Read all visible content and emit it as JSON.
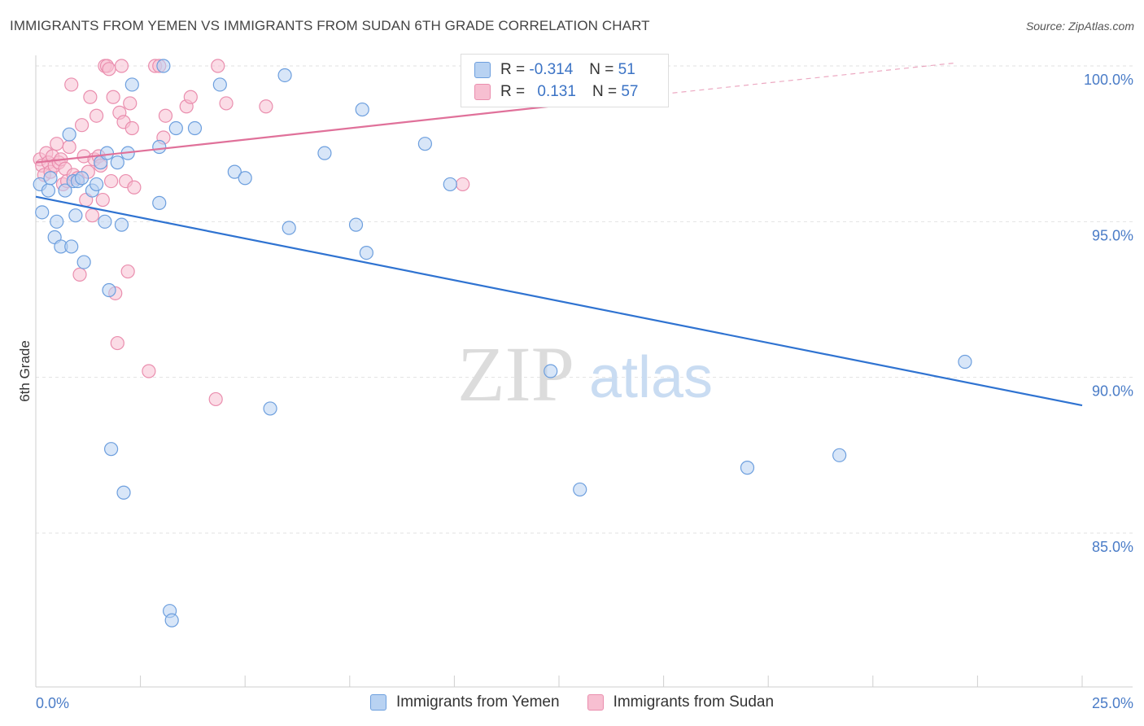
{
  "title": "IMMIGRANTS FROM YEMEN VS IMMIGRANTS FROM SUDAN 6TH GRADE CORRELATION CHART",
  "source": "Source: ZipAtlas.com",
  "watermark": {
    "zip": "ZIP",
    "atlas": "atlas"
  },
  "colors": {
    "yemen_fill": "#b8d2f2",
    "yemen_stroke": "#6d9fde",
    "yemen_line": "#2f73d1",
    "sudan_fill": "#f7bfd1",
    "sudan_stroke": "#ea8eae",
    "sudan_line": "#e0719a",
    "axis_label": "#4a7cc7"
  },
  "legend_top": {
    "rows": [
      {
        "r_label": "R =",
        "r_value": "-0.314",
        "n_label": "N =",
        "n_value": "51"
      },
      {
        "r_label": "R =",
        "r_value": "0.131",
        "n_label": "N =",
        "n_value": "57"
      }
    ]
  },
  "chart_data": {
    "type": "scatter",
    "title": "IMMIGRANTS FROM YEMEN VS IMMIGRANTS FROM SUDAN 6TH GRADE CORRELATION CHART",
    "xlabel": "",
    "ylabel": "6th Grade",
    "xlim": [
      0,
      25
    ],
    "ylim": [
      80.5,
      100.8
    ],
    "x_ticks": [
      "0.0%",
      "25.0%"
    ],
    "y_ticks": [
      {
        "value": 100,
        "label": "100.0%"
      },
      {
        "value": 95,
        "label": "95.0%"
      },
      {
        "value": 90,
        "label": "90.0%"
      },
      {
        "value": 85,
        "label": "85.0%"
      }
    ],
    "series": [
      {
        "name": "Immigrants from Yemen",
        "points": [
          [
            0.1,
            96.2
          ],
          [
            0.15,
            95.3
          ],
          [
            0.3,
            96.0
          ],
          [
            0.35,
            96.4
          ],
          [
            0.45,
            94.5
          ],
          [
            0.5,
            95.0
          ],
          [
            0.6,
            94.2
          ],
          [
            0.7,
            96.0
          ],
          [
            0.8,
            97.8
          ],
          [
            0.85,
            94.2
          ],
          [
            0.9,
            96.3
          ],
          [
            0.95,
            95.2
          ],
          [
            1.0,
            96.3
          ],
          [
            1.1,
            96.4
          ],
          [
            1.15,
            93.7
          ],
          [
            1.35,
            96.0
          ],
          [
            1.45,
            96.2
          ],
          [
            1.55,
            96.9
          ],
          [
            1.65,
            95.0
          ],
          [
            1.7,
            97.2
          ],
          [
            1.75,
            92.8
          ],
          [
            1.8,
            87.7
          ],
          [
            1.95,
            96.9
          ],
          [
            2.05,
            94.9
          ],
          [
            2.1,
            86.3
          ],
          [
            2.2,
            97.2
          ],
          [
            2.3,
            99.4
          ],
          [
            2.95,
            97.4
          ],
          [
            2.95,
            95.6
          ],
          [
            3.05,
            100.0
          ],
          [
            3.2,
            82.5
          ],
          [
            3.25,
            82.2
          ],
          [
            3.35,
            98.0
          ],
          [
            3.8,
            98.0
          ],
          [
            4.4,
            99.4
          ],
          [
            4.75,
            96.6
          ],
          [
            5.0,
            96.4
          ],
          [
            5.6,
            89.0
          ],
          [
            5.95,
            99.7
          ],
          [
            6.05,
            94.8
          ],
          [
            6.9,
            97.2
          ],
          [
            7.65,
            94.9
          ],
          [
            7.8,
            98.6
          ],
          [
            7.9,
            94.0
          ],
          [
            9.3,
            97.5
          ],
          [
            9.9,
            96.2
          ],
          [
            12.3,
            90.2
          ],
          [
            13.0,
            86.4
          ],
          [
            17.0,
            87.1
          ],
          [
            19.2,
            87.5
          ],
          [
            22.2,
            90.5
          ]
        ]
      },
      {
        "name": "Immigrants from Sudan",
        "points": [
          [
            0.1,
            97.0
          ],
          [
            0.15,
            96.8
          ],
          [
            0.2,
            96.5
          ],
          [
            0.25,
            97.2
          ],
          [
            0.3,
            96.9
          ],
          [
            0.35,
            96.6
          ],
          [
            0.4,
            97.1
          ],
          [
            0.45,
            96.8
          ],
          [
            0.5,
            97.5
          ],
          [
            0.55,
            96.9
          ],
          [
            0.6,
            97.0
          ],
          [
            0.65,
            96.2
          ],
          [
            0.7,
            96.7
          ],
          [
            0.75,
            96.3
          ],
          [
            0.8,
            97.4
          ],
          [
            0.85,
            99.4
          ],
          [
            0.9,
            96.5
          ],
          [
            1.0,
            96.4
          ],
          [
            1.05,
            93.3
          ],
          [
            1.1,
            98.1
          ],
          [
            1.15,
            97.1
          ],
          [
            1.2,
            95.7
          ],
          [
            1.25,
            96.6
          ],
          [
            1.3,
            99.0
          ],
          [
            1.35,
            95.2
          ],
          [
            1.4,
            97.0
          ],
          [
            1.45,
            98.4
          ],
          [
            1.5,
            97.1
          ],
          [
            1.55,
            96.8
          ],
          [
            1.6,
            95.7
          ],
          [
            1.65,
            100.0
          ],
          [
            1.7,
            100.0
          ],
          [
            1.75,
            99.9
          ],
          [
            1.8,
            96.3
          ],
          [
            1.85,
            99.0
          ],
          [
            1.9,
            92.7
          ],
          [
            1.95,
            91.1
          ],
          [
            2.0,
            98.5
          ],
          [
            2.05,
            100.0
          ],
          [
            2.1,
            98.2
          ],
          [
            2.15,
            96.3
          ],
          [
            2.2,
            93.4
          ],
          [
            2.25,
            98.8
          ],
          [
            2.3,
            98.0
          ],
          [
            2.35,
            96.1
          ],
          [
            2.7,
            90.2
          ],
          [
            2.85,
            100.0
          ],
          [
            2.95,
            100.0
          ],
          [
            3.05,
            97.7
          ],
          [
            3.1,
            98.4
          ],
          [
            3.6,
            98.7
          ],
          [
            3.7,
            99.0
          ],
          [
            4.3,
            89.3
          ],
          [
            4.35,
            100.0
          ],
          [
            4.55,
            98.8
          ],
          [
            5.5,
            98.7
          ],
          [
            10.2,
            96.2
          ]
        ]
      }
    ],
    "trend_lines": [
      {
        "series": "Immigrants from Yemen",
        "start": [
          0,
          95.8
        ],
        "end": [
          25,
          89.1
        ]
      },
      {
        "series": "Immigrants from Sudan",
        "start": [
          0,
          96.9
        ],
        "end": [
          15,
          99.1
        ],
        "dashed_to": [
          22,
          100.1
        ]
      }
    ]
  },
  "bottom_legend": [
    "Immigrants from Yemen",
    "Immigrants from Sudan"
  ]
}
